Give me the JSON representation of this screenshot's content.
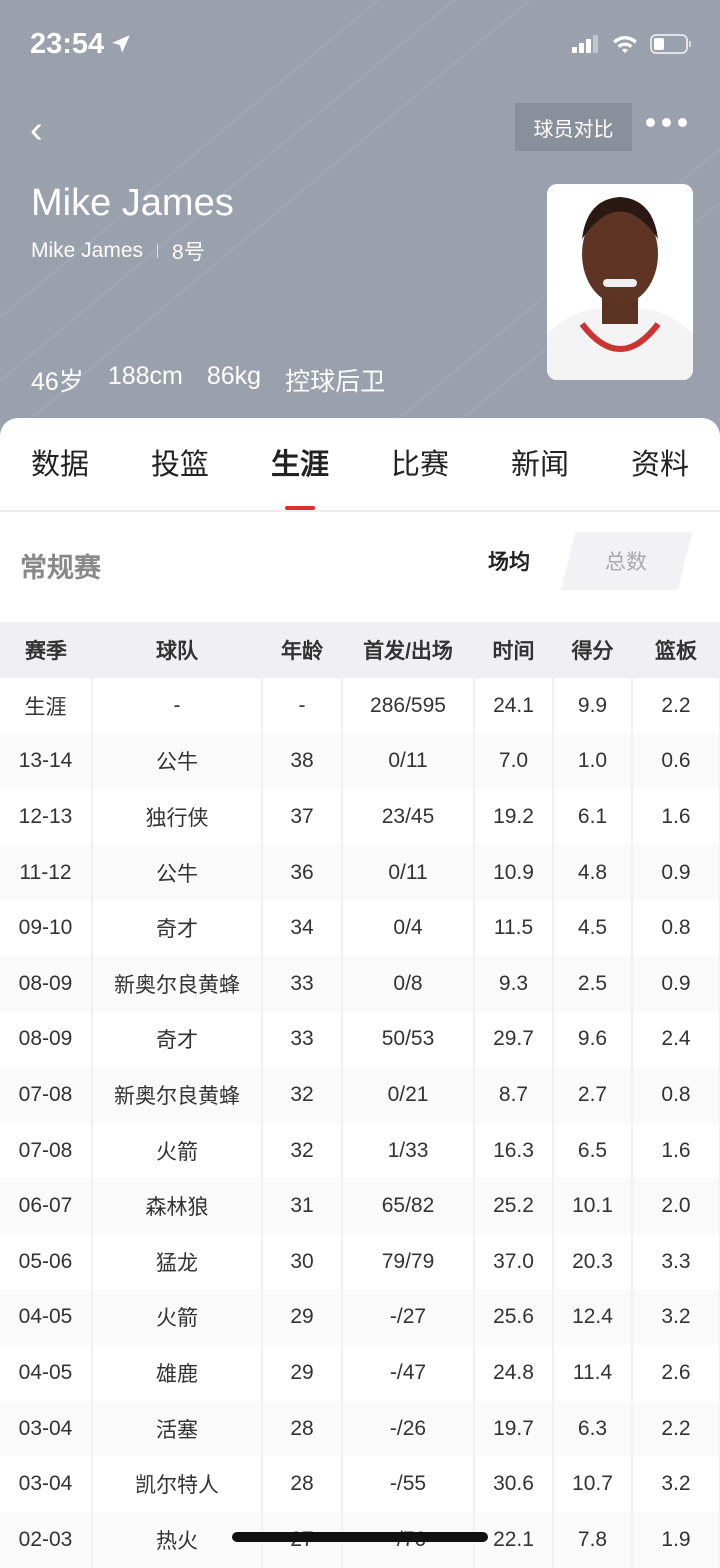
{
  "status_bar": {
    "time": "23:54"
  },
  "header": {
    "compare_label": "球员对比",
    "name": "Mike James",
    "english_name": "Mike James",
    "number": "8号",
    "attributes": [
      "46岁",
      "188cm",
      "86kg",
      "控球后卫"
    ]
  },
  "tabs": [
    {
      "label": "数据"
    },
    {
      "label": "投篮"
    },
    {
      "label": "生涯",
      "active": true
    },
    {
      "label": "比赛"
    },
    {
      "label": "新闻"
    },
    {
      "label": "资料"
    }
  ],
  "section": {
    "title": "常规赛",
    "toggle": [
      "场均",
      "总数"
    ],
    "toggle_selected": "场均"
  },
  "accent_color": "#d9302d",
  "table": {
    "columns": [
      "赛季",
      "球队",
      "年龄",
      "首发/出场",
      "时间",
      "得分",
      "篮板"
    ],
    "rows": [
      [
        "生涯",
        "-",
        "-",
        "286/595",
        "24.1",
        "9.9",
        "2.2"
      ],
      [
        "13-14",
        "公牛",
        "38",
        "0/11",
        "7.0",
        "1.0",
        "0.6"
      ],
      [
        "12-13",
        "独行侠",
        "37",
        "23/45",
        "19.2",
        "6.1",
        "1.6"
      ],
      [
        "11-12",
        "公牛",
        "36",
        "0/11",
        "10.9",
        "4.8",
        "0.9"
      ],
      [
        "09-10",
        "奇才",
        "34",
        "0/4",
        "11.5",
        "4.5",
        "0.8"
      ],
      [
        "08-09",
        "新奥尔良黄蜂",
        "33",
        "0/8",
        "9.3",
        "2.5",
        "0.9"
      ],
      [
        "08-09",
        "奇才",
        "33",
        "50/53",
        "29.7",
        "9.6",
        "2.4"
      ],
      [
        "07-08",
        "新奥尔良黄蜂",
        "32",
        "0/21",
        "8.7",
        "2.7",
        "0.8"
      ],
      [
        "07-08",
        "火箭",
        "32",
        "1/33",
        "16.3",
        "6.5",
        "1.6"
      ],
      [
        "06-07",
        "森林狼",
        "31",
        "65/82",
        "25.2",
        "10.1",
        "2.0"
      ],
      [
        "05-06",
        "猛龙",
        "30",
        "79/79",
        "37.0",
        "20.3",
        "3.3"
      ],
      [
        "04-05",
        "火箭",
        "29",
        "-/27",
        "25.6",
        "12.4",
        "3.2"
      ],
      [
        "04-05",
        "雄鹿",
        "29",
        "-/47",
        "24.8",
        "11.4",
        "2.6"
      ],
      [
        "03-04",
        "活塞",
        "28",
        "-/26",
        "19.7",
        "6.3",
        "2.2"
      ],
      [
        "03-04",
        "凯尔特人",
        "28",
        "-/55",
        "30.6",
        "10.7",
        "3.2"
      ],
      [
        "02-03",
        "热火",
        "27",
        "-/76",
        "22.1",
        "7.8",
        "1.9"
      ]
    ]
  }
}
